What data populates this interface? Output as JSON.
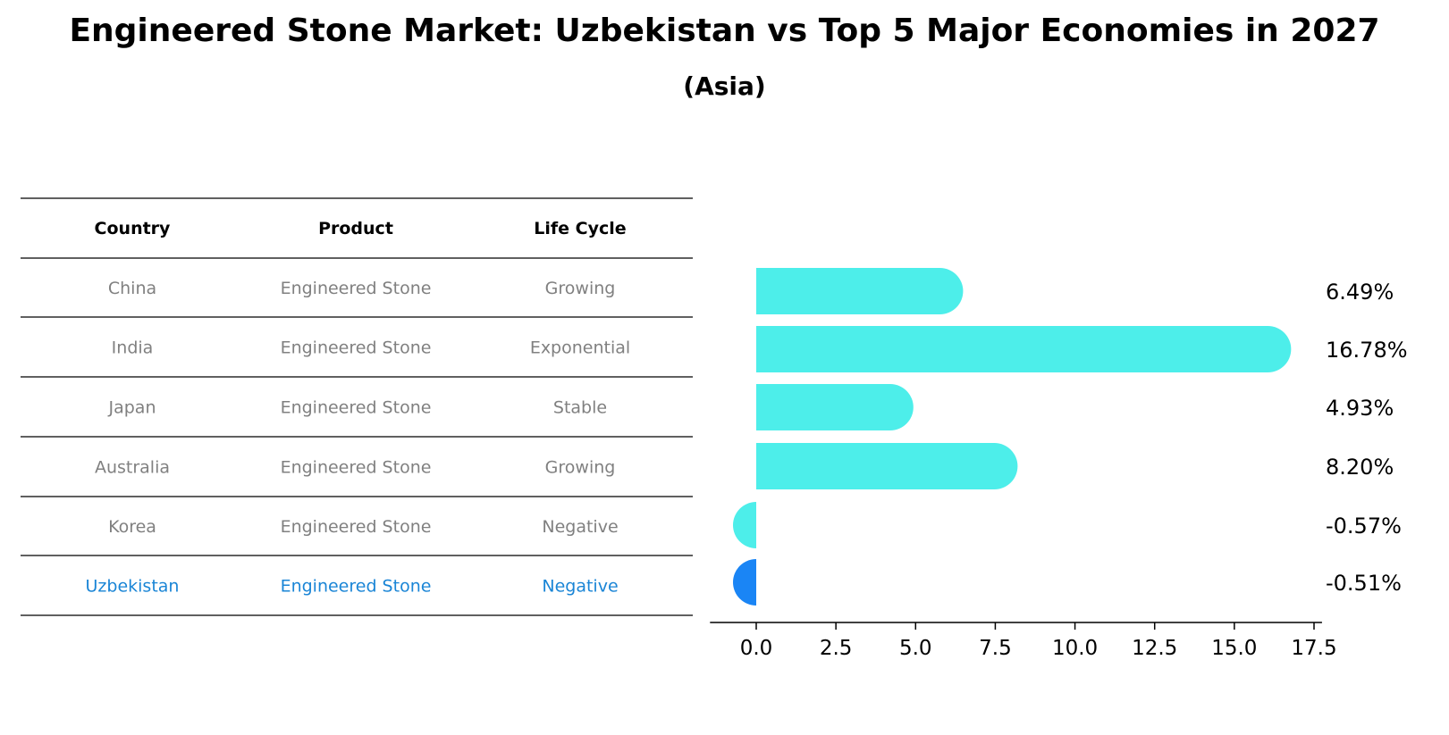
{
  "title": "Engineered Stone Market: Uzbekistan vs Top 5 Major Economies in 2027",
  "subtitle": "(Asia)",
  "table": {
    "headers": [
      "Country",
      "Product",
      "Life Cycle"
    ],
    "rows": [
      {
        "country": "China",
        "product": "Engineered Stone",
        "life_cycle": "Growing"
      },
      {
        "country": "India",
        "product": "Engineered Stone",
        "life_cycle": "Exponential"
      },
      {
        "country": "Japan",
        "product": "Engineered Stone",
        "life_cycle": "Stable"
      },
      {
        "country": "Australia",
        "product": "Engineered Stone",
        "life_cycle": "Growing"
      },
      {
        "country": "Korea",
        "product": "Engineered Stone",
        "life_cycle": "Negative"
      },
      {
        "country": "Uzbekistan",
        "product": "Engineered Stone",
        "life_cycle": "Negative"
      }
    ]
  },
  "colors": {
    "others_bar": "#4DEEEA",
    "highlight_bar": "#1A85F5",
    "muted_text": "#808080",
    "highlight_text": "#1A85D6"
  },
  "chart_data": {
    "type": "bar",
    "orientation": "horizontal",
    "categories": [
      "China",
      "India",
      "Japan",
      "Australia",
      "Korea",
      "Uzbekistan"
    ],
    "values": [
      6.49,
      16.78,
      4.93,
      8.2,
      -0.57,
      -0.51
    ],
    "value_labels": [
      "6.49%",
      "16.78%",
      "4.93%",
      "8.20%",
      "-0.57%",
      "-0.51%"
    ],
    "highlight": "Uzbekistan",
    "xticks": [
      "0.0",
      "2.5",
      "5.0",
      "7.5",
      "10.0",
      "12.5",
      "15.0",
      "17.5"
    ],
    "xtick_values": [
      0,
      2.5,
      5,
      7.5,
      10,
      12.5,
      15,
      17.5
    ],
    "xlim": [
      -1.45,
      17.75
    ],
    "grid": false
  }
}
